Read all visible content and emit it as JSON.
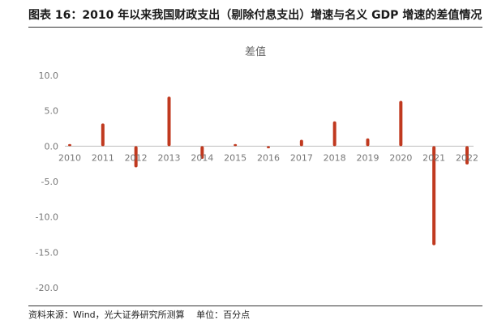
{
  "figure": {
    "title": "图表 16：2010 年以来我国财政支出（剔除付息支出）增速与名义 GDP 增速的差值情况",
    "source": "资料来源：Wind，光大证券研究所测算　 单位：百分点"
  },
  "colors": {
    "bar": "#C0391F",
    "axis": "#bfbfbf",
    "text": "#777777"
  },
  "chart_data": {
    "type": "bar",
    "title": "差值",
    "categories": [
      "2010",
      "2011",
      "2012",
      "2013",
      "2014",
      "2015",
      "2016",
      "2017",
      "2018",
      "2019",
      "2020",
      "2021",
      "2022"
    ],
    "series": [
      {
        "values": [
          0.3,
          3.2,
          -3.0,
          7.0,
          -1.8,
          0.3,
          -0.3,
          0.9,
          3.5,
          1.1,
          6.4,
          -14.0,
          -2.6
        ]
      }
    ],
    "ylim": [
      -20,
      10
    ],
    "yticks": [
      "10.0",
      "5.0",
      "0.0",
      "-5.0",
      "-10.0",
      "-15.0",
      "-20.0"
    ],
    "grid": false,
    "legend": "none"
  }
}
